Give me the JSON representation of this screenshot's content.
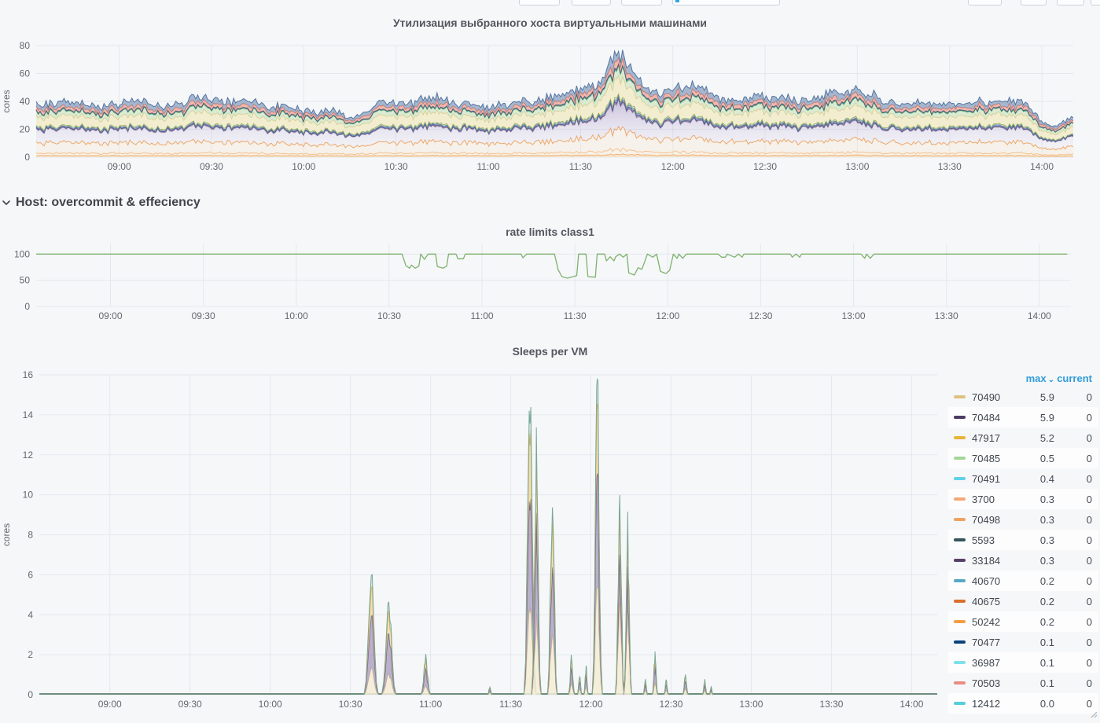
{
  "row": {
    "title": "Host: overcommit & effeciency"
  },
  "chart_data": [
    {
      "id": "utilization",
      "type": "area",
      "stacked": true,
      "title": "Утилизация выбранного хоста виртуальными машинами",
      "ylabel": "cores",
      "ylim": [
        0,
        80
      ],
      "yticks": [
        0,
        20,
        40,
        60,
        80
      ],
      "xticks": [
        "09:00",
        "09:30",
        "10:00",
        "10:30",
        "11:00",
        "11:30",
        "12:00",
        "12:30",
        "13:00",
        "13:30",
        "14:00"
      ],
      "time_range_hours": [
        8.55,
        14.17
      ],
      "grid": true,
      "legend_position": "none",
      "total_profile": {
        "t": [
          8.55,
          8.75,
          8.92,
          9.08,
          9.25,
          9.42,
          9.58,
          9.75,
          9.92,
          10.08,
          10.25,
          10.42,
          10.58,
          10.75,
          10.92,
          11.08,
          11.25,
          11.42,
          11.58,
          11.7,
          11.83,
          11.92,
          12.08,
          12.25,
          12.42,
          12.58,
          12.75,
          12.92,
          13.08,
          13.25,
          13.42,
          13.58,
          13.75,
          13.92,
          14.0,
          14.08,
          14.17
        ],
        "v": [
          40,
          45,
          42,
          47,
          41,
          48,
          43,
          42,
          40,
          36,
          34,
          44,
          46,
          42,
          40,
          44,
          46,
          48,
          46,
          68,
          50,
          46,
          52,
          48,
          44,
          46,
          44,
          48,
          46,
          44,
          46,
          44,
          46,
          42,
          30,
          26,
          34
        ]
      },
      "series": [
        {
          "name": "orange-base",
          "frac": 0.03,
          "stroke": "#eda65f",
          "fill": "rgba(247,216,173,0.55)",
          "jitter": 0.25
        },
        {
          "name": "peach-line",
          "frac": 0.045,
          "stroke": "#f4bd85",
          "fill": "rgba(250,231,205,0.35)",
          "jitter": 0.35
        },
        {
          "name": "orange-band",
          "frac": 0.2,
          "stroke": "#f0a55e",
          "fill": "rgba(248,225,196,0.28)",
          "jitter": 0.2
        },
        {
          "name": "lavender-band",
          "frac": 0.25,
          "stroke": "rgba(140,122,170,0.55)",
          "fill": "lav-gradient",
          "jitter": 0.05
        },
        {
          "name": "purple-line",
          "frac": 0.018,
          "stroke": "#5c4570",
          "fill": "rgba(92,69,112,0.5)",
          "jitter": 0.3
        },
        {
          "name": "blue-line",
          "frac": 0.02,
          "stroke": "#4e80c0",
          "fill": "rgba(120,150,200,0.45)",
          "jitter": 0.3
        },
        {
          "name": "olive-line",
          "frac": 0.025,
          "stroke": "#7f9c45",
          "fill": "rgba(160,180,110,0.4)",
          "jitter": 0.3
        },
        {
          "name": "cream-band",
          "frac": 0.19,
          "stroke": "#d3c07c",
          "fill": "rgba(243,234,196,0.8)",
          "jitter": 0.14
        },
        {
          "name": "lightgreen-band",
          "frac": 0.085,
          "stroke": "#8cba7c",
          "fill": "rgba(213,233,205,0.85)",
          "jitter": 0.2
        },
        {
          "name": "teal-line",
          "frac": 0.012,
          "stroke": "#3f9198",
          "fill": "rgba(63,145,152,0.5)",
          "jitter": 0.3
        },
        {
          "name": "navy-line",
          "frac": 0.01,
          "stroke": "#2f4a6e",
          "fill": "rgba(47,74,110,0.5)",
          "jitter": 0.3
        },
        {
          "name": "salmon-band",
          "frac": 0.06,
          "stroke": "#dd7a68",
          "fill": "rgba(238,163,148,0.75)",
          "jitter": 0.3
        },
        {
          "name": "steel-band",
          "frac": 0.085,
          "stroke": "#54749f",
          "fill": "rgba(110,140,178,0.6)",
          "jitter": 0.45
        }
      ]
    },
    {
      "id": "rate_limits",
      "type": "line",
      "title": "rate limits class1",
      "ylim": [
        0,
        120
      ],
      "yticks": [
        0,
        50,
        100
      ],
      "xticks": [
        "09:00",
        "09:30",
        "10:00",
        "10:30",
        "11:00",
        "11:30",
        "12:00",
        "12:30",
        "13:00",
        "13:30",
        "14:00"
      ],
      "time_range_hours": [
        8.6,
        14.17
      ],
      "grid": true,
      "color": "#7eb26d",
      "points": [
        [
          8.6,
          100
        ],
        [
          10.57,
          100
        ],
        [
          10.59,
          78
        ],
        [
          10.61,
          73
        ],
        [
          10.62,
          79
        ],
        [
          10.64,
          73
        ],
        [
          10.66,
          77
        ],
        [
          10.67,
          100
        ],
        [
          10.69,
          90
        ],
        [
          10.71,
          100
        ],
        [
          10.75,
          100
        ],
        [
          10.76,
          76
        ],
        [
          10.79,
          73
        ],
        [
          10.81,
          77
        ],
        [
          10.82,
          100
        ],
        [
          10.86,
          100
        ],
        [
          10.87,
          91
        ],
        [
          10.9,
          91
        ],
        [
          10.91,
          100
        ],
        [
          11.21,
          100
        ],
        [
          11.22,
          93
        ],
        [
          11.24,
          100
        ],
        [
          11.39,
          100
        ],
        [
          11.41,
          70
        ],
        [
          11.43,
          57
        ],
        [
          11.46,
          54
        ],
        [
          11.49,
          57
        ],
        [
          11.51,
          59
        ],
        [
          11.52,
          100
        ],
        [
          11.56,
          100
        ],
        [
          11.57,
          57
        ],
        [
          11.61,
          56
        ],
        [
          11.62,
          100
        ],
        [
          11.66,
          100
        ],
        [
          11.67,
          87
        ],
        [
          11.69,
          95
        ],
        [
          11.71,
          87
        ],
        [
          11.72,
          95
        ],
        [
          11.74,
          100
        ],
        [
          11.76,
          94
        ],
        [
          11.78,
          100
        ],
        [
          11.79,
          64
        ],
        [
          11.82,
          60
        ],
        [
          11.84,
          74
        ],
        [
          11.86,
          71
        ],
        [
          11.87,
          80
        ],
        [
          11.89,
          100
        ],
        [
          11.92,
          94
        ],
        [
          11.94,
          100
        ],
        [
          11.96,
          67
        ],
        [
          11.99,
          63
        ],
        [
          12.01,
          69
        ],
        [
          12.03,
          100
        ],
        [
          12.05,
          92
        ],
        [
          12.06,
          100
        ],
        [
          12.08,
          92
        ],
        [
          12.1,
          100
        ],
        [
          12.27,
          100
        ],
        [
          12.29,
          94
        ],
        [
          12.31,
          94
        ],
        [
          12.32,
          100
        ],
        [
          12.36,
          94
        ],
        [
          12.38,
          100
        ],
        [
          12.4,
          94
        ],
        [
          12.41,
          100
        ],
        [
          12.66,
          100
        ],
        [
          12.67,
          94
        ],
        [
          12.69,
          100
        ],
        [
          12.71,
          94
        ],
        [
          12.72,
          100
        ],
        [
          13.04,
          100
        ],
        [
          13.06,
          92
        ],
        [
          13.07,
          100
        ],
        [
          13.09,
          92
        ],
        [
          13.11,
          100
        ],
        [
          14.15,
          100
        ]
      ]
    },
    {
      "id": "sleeps",
      "type": "area",
      "stacked": true,
      "title": "Sleeps per VM",
      "ylabel": "cores",
      "ylim": [
        0,
        16
      ],
      "yticks": [
        0,
        2,
        4,
        6,
        8,
        10,
        12,
        14,
        16
      ],
      "xticks": [
        "09:00",
        "09:30",
        "10:00",
        "10:30",
        "11:00",
        "11:30",
        "12:00",
        "12:30",
        "13:00",
        "13:30",
        "14:00"
      ],
      "time_range_hours": [
        8.56,
        14.16
      ],
      "grid": true,
      "baseline_color": "#6e8f7d",
      "layers": [
        {
          "name": "70490",
          "fill": "rgba(244,236,214,0.85)",
          "stroke": "#e3d3a2"
        },
        {
          "name": "70484",
          "fill": "rgba(126,106,156,0.5)",
          "stroke": "#6d5787"
        },
        {
          "name": "47917",
          "fill": "rgba(236,202,122,0.55)",
          "stroke": "#d2ad52"
        },
        {
          "name": "70485",
          "fill": "rgba(176,208,190,0.4)",
          "stroke": "#79a795"
        }
      ],
      "spikes": [
        {
          "t": 10.63,
          "h": 6.0,
          "w": 0.045,
          "f": [
            0.22,
            0.44,
            0.24,
            0.1
          ]
        },
        {
          "t": 10.74,
          "h": 4.9,
          "w": 0.045,
          "f": [
            0.22,
            0.44,
            0.24,
            0.1
          ]
        },
        {
          "t": 10.97,
          "h": 2.0,
          "w": 0.03,
          "f": [
            0.22,
            0.44,
            0.24,
            0.1
          ]
        },
        {
          "t": 11.37,
          "h": 0.4,
          "w": 0.015,
          "f": [
            0.28,
            0.4,
            0.24,
            0.08
          ]
        },
        {
          "t": 11.62,
          "h": 14.5,
          "w": 0.038,
          "f": [
            0.3,
            0.38,
            0.24,
            0.08
          ]
        },
        {
          "t": 11.66,
          "h": 12.4,
          "w": 0.03,
          "f": [
            0.3,
            0.38,
            0.24,
            0.08
          ]
        },
        {
          "t": 11.76,
          "h": 10.8,
          "w": 0.03,
          "f": [
            0.32,
            0.36,
            0.24,
            0.08
          ]
        },
        {
          "t": 11.88,
          "h": 1.9,
          "w": 0.02,
          "f": [
            0.28,
            0.4,
            0.24,
            0.08
          ]
        },
        {
          "t": 11.93,
          "h": 1.0,
          "w": 0.015,
          "f": [
            0.28,
            0.4,
            0.24,
            0.08
          ]
        },
        {
          "t": 11.97,
          "h": 1.4,
          "w": 0.015,
          "f": [
            0.28,
            0.4,
            0.24,
            0.08
          ]
        },
        {
          "t": 12.04,
          "h": 15.4,
          "w": 0.032,
          "f": [
            0.34,
            0.36,
            0.22,
            0.08
          ]
        },
        {
          "t": 12.18,
          "h": 9.5,
          "w": 0.028,
          "f": [
            0.46,
            0.24,
            0.22,
            0.08
          ]
        },
        {
          "t": 12.23,
          "h": 8.0,
          "w": 0.025,
          "f": [
            0.46,
            0.24,
            0.22,
            0.08
          ]
        },
        {
          "t": 12.34,
          "h": 0.7,
          "w": 0.015,
          "f": [
            0.28,
            0.4,
            0.24,
            0.08
          ]
        },
        {
          "t": 12.4,
          "h": 2.0,
          "w": 0.018,
          "f": [
            0.28,
            0.4,
            0.24,
            0.08
          ]
        },
        {
          "t": 12.47,
          "h": 0.8,
          "w": 0.015,
          "f": [
            0.28,
            0.4,
            0.24,
            0.08
          ]
        },
        {
          "t": 12.59,
          "h": 1.0,
          "w": 0.018,
          "f": [
            0.28,
            0.4,
            0.24,
            0.08
          ]
        },
        {
          "t": 12.71,
          "h": 0.7,
          "w": 0.015,
          "f": [
            0.28,
            0.4,
            0.24,
            0.08
          ]
        },
        {
          "t": 12.75,
          "h": 0.4,
          "w": 0.012,
          "f": [
            0.28,
            0.4,
            0.24,
            0.08
          ]
        }
      ],
      "legend": {
        "columns": [
          "max",
          "current"
        ],
        "sort_column": "max",
        "header_color": "#2f9cd8",
        "rows": [
          {
            "name": "70490",
            "color": "#dfc27e",
            "max": "5.9",
            "current": "0"
          },
          {
            "name": "70484",
            "color": "#4e3a66",
            "max": "5.9",
            "current": "0"
          },
          {
            "name": "47917",
            "color": "#e9b33b",
            "max": "5.2",
            "current": "0"
          },
          {
            "name": "70485",
            "color": "#a5d69a",
            "max": "0.5",
            "current": "0"
          },
          {
            "name": "70491",
            "color": "#5fd2e5",
            "max": "0.4",
            "current": "0"
          },
          {
            "name": "3700",
            "color": "#f4a876",
            "max": "0.3",
            "current": "0"
          },
          {
            "name": "70498",
            "color": "#f0a263",
            "max": "0.3",
            "current": "0"
          },
          {
            "name": "5593",
            "color": "#33565e",
            "max": "0.3",
            "current": "0"
          },
          {
            "name": "33184",
            "color": "#583f6b",
            "max": "0.3",
            "current": "0"
          },
          {
            "name": "40670",
            "color": "#57a9c2",
            "max": "0.2",
            "current": "0"
          },
          {
            "name": "40675",
            "color": "#d96f2b",
            "max": "0.2",
            "current": "0"
          },
          {
            "name": "50242",
            "color": "#f59e45",
            "max": "0.2",
            "current": "0"
          },
          {
            "name": "70477",
            "color": "#0a437c",
            "max": "0.1",
            "current": "0"
          },
          {
            "name": "36987",
            "color": "#7ce1e9",
            "max": "0.1",
            "current": "0"
          },
          {
            "name": "70503",
            "color": "#e98d80",
            "max": "0.1",
            "current": "0"
          },
          {
            "name": "12412",
            "color": "#56cfdc",
            "max": "0.0",
            "current": "0"
          }
        ]
      }
    }
  ]
}
